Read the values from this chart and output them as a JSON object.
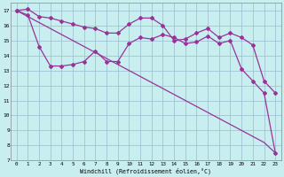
{
  "xlabel": "Windchill (Refroidissement éolien,°C)",
  "x_values": [
    0,
    1,
    2,
    3,
    4,
    5,
    6,
    7,
    8,
    9,
    10,
    11,
    12,
    13,
    14,
    15,
    16,
    17,
    18,
    19,
    20,
    21,
    22,
    23
  ],
  "line_diagonal": [
    17.0,
    16.6,
    16.2,
    15.8,
    15.4,
    15.0,
    14.6,
    14.2,
    13.8,
    13.4,
    13.0,
    12.6,
    12.2,
    11.8,
    11.4,
    11.0,
    10.6,
    10.2,
    9.8,
    9.4,
    9.0,
    8.6,
    8.2,
    7.5
  ],
  "line_upper": [
    17.0,
    17.1,
    16.6,
    16.5,
    16.3,
    16.1,
    15.9,
    15.8,
    15.5,
    15.5,
    16.1,
    16.5,
    16.5,
    16.0,
    15.0,
    15.1,
    15.5,
    15.8,
    15.2,
    15.5,
    15.2,
    14.7,
    12.3,
    11.5
  ],
  "line_lower": [
    17.0,
    16.7,
    14.6,
    13.3,
    13.3,
    13.4,
    13.6,
    14.3,
    13.6,
    13.6,
    14.8,
    15.2,
    15.1,
    15.4,
    15.2,
    14.8,
    14.9,
    15.3,
    14.8,
    15.0,
    13.1,
    12.3,
    11.5,
    7.5
  ],
  "line_color": "#993399",
  "bg_color": "#c8eef0",
  "grid_color": "#99bbcc",
  "ylim_min": 7,
  "ylim_max": 17.5,
  "yticks": [
    7,
    8,
    9,
    10,
    11,
    12,
    13,
    14,
    15,
    16,
    17
  ],
  "marker": "D",
  "marker_size": 2.0,
  "lw": 0.9
}
